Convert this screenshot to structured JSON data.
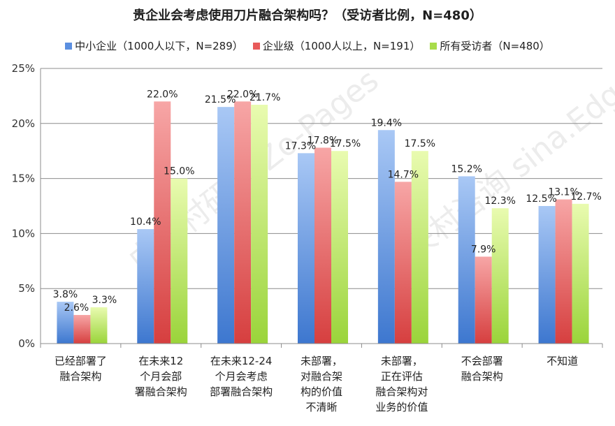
{
  "chart_data": {
    "type": "bar",
    "title": "贵企业会考虑使用刀片融合架构吗？（受访者比例，N=480）",
    "categories": [
      [
        "已经部署了",
        "融合架构"
      ],
      [
        "在未来12",
        "个月会部",
        "署融合架构"
      ],
      [
        "在未来12-24",
        "个月会考虑",
        "部署融合架构"
      ],
      [
        "未部署，",
        "对融合架",
        "构的价值",
        "不清晰"
      ],
      [
        "未部署，",
        "正在评估",
        "融合架构对",
        "业务的价值"
      ],
      [
        "不会部署",
        "融合架构"
      ],
      [
        "不知道"
      ]
    ],
    "series": [
      {
        "name": "中小企业（1000人以下，N=289）",
        "color_top": "#a9c8f5",
        "color_bottom": "#3d77cf",
        "values": [
          3.8,
          10.4,
          21.5,
          17.3,
          19.4,
          15.2,
          12.5
        ],
        "labels": [
          "3.8%",
          "10.4%",
          "21.5%",
          "17.3%",
          "19.4%",
          "15.2%",
          "12.5%"
        ]
      },
      {
        "name": "企业级（1000人以上，N=191）",
        "color_top": "#f7a6a6",
        "color_bottom": "#d63f3f",
        "values": [
          2.6,
          22.0,
          22.0,
          17.8,
          14.7,
          7.9,
          13.1
        ],
        "labels": [
          "2.6%",
          "22.0%",
          "22.0%",
          "17.8%",
          "14.7%",
          "7.9%",
          "13.1%"
        ]
      },
      {
        "name": "所有受访者（N=480）",
        "color_top": "#e9fbb0",
        "color_bottom": "#9ad43a",
        "values": [
          3.3,
          15.0,
          21.7,
          17.5,
          17.5,
          12.3,
          12.7
        ],
        "labels": [
          "3.3%",
          "15.0%",
          "21.7%",
          "17.5%",
          "17.5%",
          "12.3%",
          "12.7%"
        ]
      }
    ],
    "yticks": [
      "0%",
      "5%",
      "10%",
      "15%",
      "20%",
      "25%"
    ],
    "ylim": [
      0,
      25
    ],
    "grid": true,
    "legend_position": "top"
  },
  "watermark": {
    "line1": "中关村研究 Zo-Pages",
    "line2": "中关村咨询 sina.Edge"
  }
}
